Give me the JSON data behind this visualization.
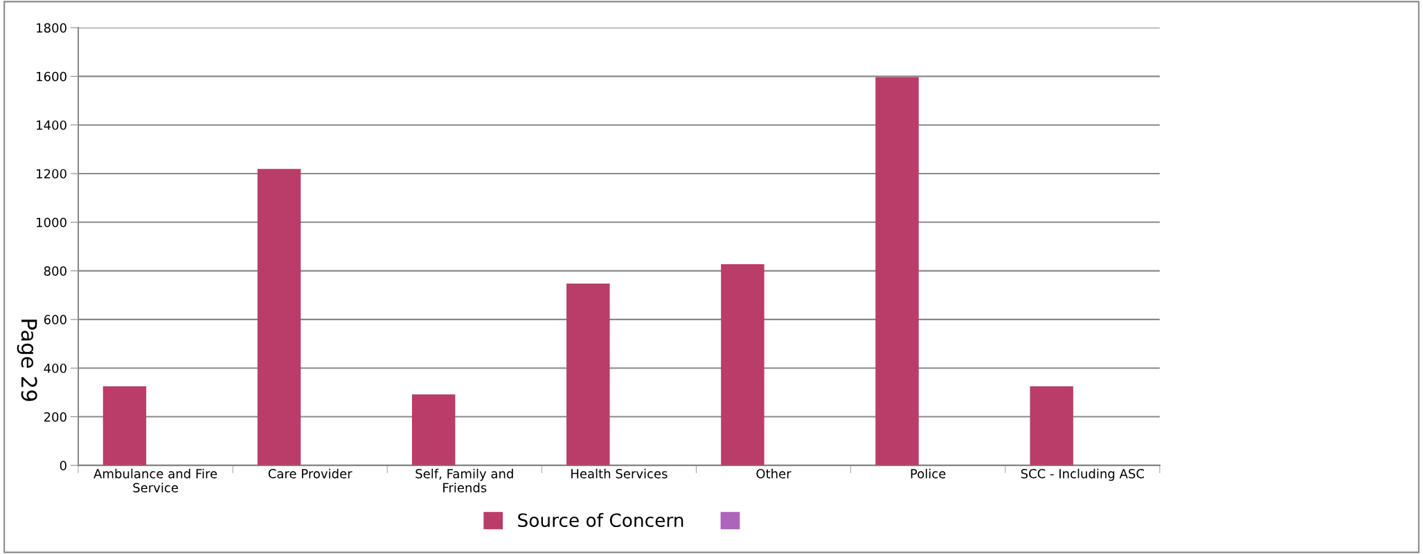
{
  "chart_data": {
    "type": "bar",
    "categories": [
      "Ambulance and Fire\nService",
      "Care Provider",
      "Self, Family and\nFriends",
      "Health Services",
      "Other",
      "Police",
      "SCC - Including ASC"
    ],
    "series": [
      {
        "name": "Source of Concern",
        "color": "#b93d68",
        "values": [
          325,
          1219,
          292,
          748,
          827,
          1597,
          325
        ]
      },
      {
        "color": "#ac65bb",
        "values": [
          null,
          null,
          null,
          null,
          null,
          null,
          null
        ]
      }
    ],
    "ylim": [
      0,
      1800
    ],
    "yticks": [
      0,
      200,
      400,
      600,
      800,
      1000,
      1200,
      1400,
      1600,
      1800
    ],
    "grid": "y",
    "legend": "bottom",
    "annotations": [
      "Page 29"
    ]
  }
}
